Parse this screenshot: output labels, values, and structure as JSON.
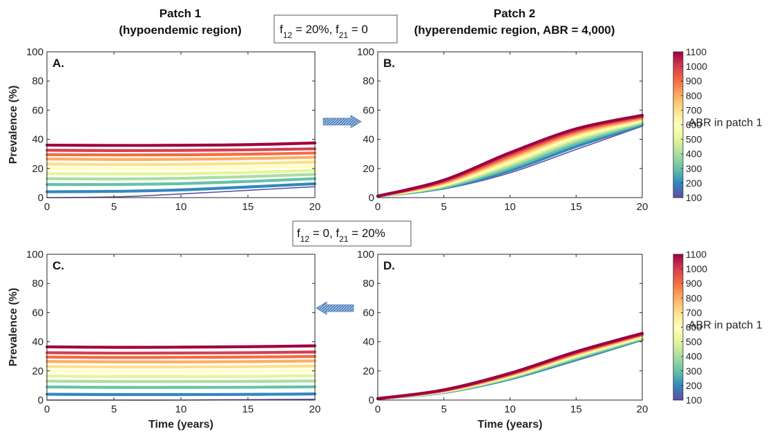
{
  "header": {
    "patch1_title": "Patch 1",
    "patch1_subtitle": "(hypoendemic region)",
    "patch2_title": "Patch 2",
    "patch2_subtitle": "(hyperendemic region, ABR = 4,000)"
  },
  "scenario_boxes": [
    {
      "f12": "20%",
      "f21": "0"
    },
    {
      "f12": "0",
      "f21": "20%"
    }
  ],
  "arrows": [
    {
      "direction": "right",
      "color": "#4f81bd"
    },
    {
      "direction": "left",
      "color": "#4f81bd"
    }
  ],
  "colorbar": {
    "label": "ABR in patch 1",
    "ticks": [
      1100,
      1000,
      900,
      800,
      700,
      600,
      500,
      400,
      300,
      200,
      100
    ],
    "colors": [
      "#5e4fa2",
      "#3288bd",
      "#66c2a5",
      "#abdda4",
      "#e6f598",
      "#ffffbf",
      "#fee08b",
      "#fdae61",
      "#f46d43",
      "#d53e4f",
      "#9e0142"
    ]
  },
  "chart_data": [
    {
      "panel": "A.",
      "type": "line",
      "xlabel": "",
      "ylabel": "Prevalence (%)",
      "xlim": [
        0,
        20
      ],
      "ylim": [
        0,
        100
      ],
      "xticks": [
        0,
        5,
        10,
        15,
        20
      ],
      "yticks": [
        0,
        20,
        40,
        60,
        80,
        100
      ],
      "abr_values": [
        100,
        200,
        300,
        400,
        500,
        600,
        700,
        800,
        900,
        1000,
        1100
      ],
      "x": [
        0,
        5,
        10,
        15,
        20
      ],
      "series": [
        {
          "abr": 100,
          "values": [
            0.0,
            0.5,
            2.5,
            5.0,
            7.5
          ]
        },
        {
          "abr": 200,
          "values": [
            4.0,
            4.3,
            5.3,
            7.3,
            9.5
          ]
        },
        {
          "abr": 300,
          "values": [
            9.0,
            9.0,
            9.6,
            11.1,
            13.0
          ]
        },
        {
          "abr": 400,
          "values": [
            13.0,
            12.8,
            13.2,
            14.4,
            16.0
          ]
        },
        {
          "abr": 500,
          "values": [
            16.5,
            16.2,
            16.4,
            17.3,
            18.7
          ]
        },
        {
          "abr": 600,
          "values": [
            20.0,
            19.7,
            19.8,
            20.5,
            21.6
          ]
        },
        {
          "abr": 700,
          "values": [
            23.0,
            22.7,
            22.8,
            23.4,
            24.4
          ]
        },
        {
          "abr": 800,
          "values": [
            26.5,
            26.2,
            26.3,
            26.8,
            27.7
          ]
        },
        {
          "abr": 900,
          "values": [
            29.5,
            29.3,
            29.4,
            29.8,
            30.6
          ]
        },
        {
          "abr": 1000,
          "values": [
            32.5,
            32.3,
            32.4,
            32.8,
            33.5
          ]
        },
        {
          "abr": 1100,
          "values": [
            36.0,
            35.8,
            35.9,
            36.3,
            37.5
          ]
        }
      ]
    },
    {
      "panel": "B.",
      "type": "line",
      "xlabel": "",
      "ylabel": "",
      "xlim": [
        0,
        20
      ],
      "ylim": [
        0,
        100
      ],
      "xticks": [
        0,
        5,
        10,
        15,
        20
      ],
      "yticks": [
        0,
        20,
        40,
        60,
        80,
        100
      ],
      "abr_values": [
        100,
        200,
        300,
        400,
        500,
        600,
        700,
        800,
        900,
        1000,
        1100
      ],
      "x": [
        0,
        5,
        10,
        15,
        20
      ],
      "series": [
        {
          "abr": 100,
          "values": [
            1.0,
            6.0,
            17.0,
            33.0,
            49.0
          ]
        },
        {
          "abr": 200,
          "values": [
            1.0,
            6.6,
            18.6,
            35.0,
            50.0
          ]
        },
        {
          "abr": 300,
          "values": [
            1.0,
            7.2,
            20.2,
            37.0,
            50.8
          ]
        },
        {
          "abr": 400,
          "values": [
            1.0,
            7.8,
            21.8,
            38.8,
            51.6
          ]
        },
        {
          "abr": 500,
          "values": [
            1.0,
            8.4,
            23.3,
            40.4,
            52.4
          ]
        },
        {
          "abr": 600,
          "values": [
            1.0,
            9.0,
            24.7,
            41.8,
            53.1
          ]
        },
        {
          "abr": 700,
          "values": [
            1.0,
            9.6,
            26.0,
            43.0,
            53.8
          ]
        },
        {
          "abr": 800,
          "values": [
            1.0,
            10.2,
            27.3,
            44.1,
            54.5
          ]
        },
        {
          "abr": 900,
          "values": [
            1.0,
            10.8,
            28.5,
            45.2,
            55.2
          ]
        },
        {
          "abr": 1000,
          "values": [
            1.0,
            11.4,
            29.7,
            46.2,
            55.9
          ]
        },
        {
          "abr": 1100,
          "values": [
            1.0,
            12.0,
            30.8,
            47.2,
            56.5
          ]
        }
      ]
    },
    {
      "panel": "C.",
      "type": "line",
      "xlabel": "Time (years)",
      "ylabel": "Prevalence (%)",
      "xlim": [
        0,
        20
      ],
      "ylim": [
        0,
        100
      ],
      "xticks": [
        0,
        5,
        10,
        15,
        20
      ],
      "yticks": [
        0,
        20,
        40,
        60,
        80,
        100
      ],
      "abr_values": [
        100,
        200,
        300,
        400,
        500,
        600,
        700,
        800,
        900,
        1000,
        1100
      ],
      "x": [
        0,
        5,
        10,
        15,
        20
      ],
      "series": [
        {
          "abr": 100,
          "values": [
            0.0,
            0.0,
            0.0,
            0.3,
            0.5
          ]
        },
        {
          "abr": 200,
          "values": [
            4.0,
            3.8,
            3.8,
            3.9,
            4.2
          ]
        },
        {
          "abr": 300,
          "values": [
            9.0,
            8.7,
            8.7,
            8.8,
            9.1
          ]
        },
        {
          "abr": 400,
          "values": [
            13.0,
            12.7,
            12.7,
            12.8,
            13.1
          ]
        },
        {
          "abr": 500,
          "values": [
            16.5,
            16.2,
            16.2,
            16.3,
            16.7
          ]
        },
        {
          "abr": 600,
          "values": [
            20.0,
            19.7,
            19.7,
            19.8,
            20.2
          ]
        },
        {
          "abr": 700,
          "values": [
            23.0,
            22.7,
            22.7,
            22.9,
            23.3
          ]
        },
        {
          "abr": 800,
          "values": [
            26.5,
            26.2,
            26.2,
            26.4,
            26.8
          ]
        },
        {
          "abr": 900,
          "values": [
            29.5,
            29.2,
            29.3,
            29.5,
            29.9
          ]
        },
        {
          "abr": 1000,
          "values": [
            32.5,
            32.2,
            32.3,
            32.5,
            33.0
          ]
        },
        {
          "abr": 1100,
          "values": [
            36.5,
            36.2,
            36.3,
            36.6,
            37.2
          ]
        }
      ]
    },
    {
      "panel": "D.",
      "type": "line",
      "xlabel": "Time (years)",
      "ylabel": "",
      "xlim": [
        0,
        20
      ],
      "ylim": [
        0,
        100
      ],
      "xticks": [
        0,
        5,
        10,
        15,
        20
      ],
      "yticks": [
        0,
        20,
        40,
        60,
        80,
        100
      ],
      "abr_values": [
        100,
        200,
        300,
        400,
        500,
        600,
        700,
        800,
        900,
        1000,
        1100
      ],
      "x": [
        0,
        5,
        10,
        15,
        20
      ],
      "series": [
        {
          "abr": 100,
          "values": [
            1.0,
            5.0,
            14.0,
            27.0,
            41.0
          ]
        },
        {
          "abr": 200,
          "values": [
            1.0,
            5.2,
            14.5,
            27.8,
            41.6
          ]
        },
        {
          "abr": 300,
          "values": [
            1.0,
            5.4,
            15.0,
            28.6,
            42.1
          ]
        },
        {
          "abr": 400,
          "values": [
            1.0,
            5.6,
            15.5,
            29.3,
            42.6
          ]
        },
        {
          "abr": 500,
          "values": [
            1.0,
            5.8,
            16.0,
            30.0,
            43.1
          ]
        },
        {
          "abr": 600,
          "values": [
            1.0,
            6.0,
            16.4,
            30.6,
            43.6
          ]
        },
        {
          "abr": 700,
          "values": [
            1.0,
            6.2,
            16.8,
            31.2,
            44.1
          ]
        },
        {
          "abr": 800,
          "values": [
            1.0,
            6.4,
            17.2,
            31.7,
            44.6
          ]
        },
        {
          "abr": 900,
          "values": [
            1.0,
            6.6,
            17.6,
            32.2,
            45.0
          ]
        },
        {
          "abr": 1000,
          "values": [
            1.0,
            6.8,
            18.0,
            32.7,
            45.4
          ]
        },
        {
          "abr": 1100,
          "values": [
            1.0,
            7.0,
            18.4,
            33.2,
            45.8
          ]
        }
      ]
    }
  ]
}
